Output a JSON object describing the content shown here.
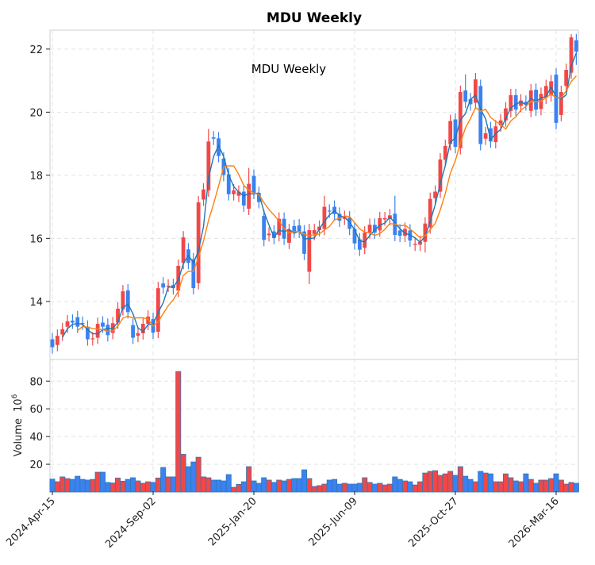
{
  "chart_data": {
    "type": "candlestick",
    "title": "MDU  Weekly",
    "annotation": "MDU  Weekly",
    "ylabel_volume": "Volume",
    "ylabel_volume_unit": "10",
    "ylabel_volume_exp": "6",
    "price_ylim": [
      12.16,
      22.6
    ],
    "volume_ylim": [
      0,
      95.6
    ],
    "price_ticks": [
      14,
      16,
      18,
      20,
      22
    ],
    "volume_ticks": [
      20,
      40,
      60,
      80
    ],
    "x_tick_labels": [
      "2024-Apr-15",
      "2024-Sep-02",
      "2025-Jan-20",
      "2025-Jun-09",
      "2025-Oct-27",
      "2026-Mar-16"
    ],
    "x_tick_index": [
      0,
      20,
      40,
      60,
      80,
      100
    ],
    "grid": true,
    "colors": {
      "up": "#f04848",
      "down": "#3b82f0",
      "ma_short": "#1f77b4",
      "ma_long": "#ff7f0e",
      "volume_edge": "#2f78b8"
    },
    "ma_periods": [
      3,
      6
    ],
    "open": [
      12.8,
      12.62,
      12.95,
      13.2,
      13.39,
      13.5,
      13.32,
      13.2,
      12.8,
      12.85,
      13.33,
      13.26,
      13.0,
      13.33,
      13.75,
      14.35,
      13.25,
      12.91,
      12.99,
      13.29,
      13.44,
      13.04,
      14.57,
      14.5,
      14.52,
      14.34,
      15.22,
      15.65,
      15.34,
      14.58,
      17.23,
      17.52,
      19.2,
      19.17,
      18.53,
      18.03,
      17.4,
      17.35,
      17.48,
      16.94,
      17.98,
      17.44,
      16.71,
      16.1,
      16.22,
      16.1,
      16.62,
      15.86,
      16.39,
      16.41,
      16.22,
      14.94,
      16.14,
      16.26,
      16.3,
      16.88,
      17.0,
      16.78,
      16.62,
      16.66,
      16.3,
      15.97,
      15.7,
      16.18,
      16.43,
      16.25,
      16.6,
      16.62,
      16.78,
      16.25,
      16.08,
      16.25,
      15.8,
      15.8,
      15.89,
      16.35,
      17.27,
      17.48,
      18.49,
      18.99,
      19.77,
      18.86,
      20.69,
      20.41,
      20.3,
      20.83,
      19.16,
      19.49,
      19.05,
      19.58,
      19.74,
      20.04,
      20.54,
      20.2,
      20.33,
      20.04,
      20.71,
      20.1,
      20.46,
      20.54,
      21.19,
      19.91,
      20.83,
      21.25,
      22.28
    ],
    "high": [
      13.0,
      13.11,
      13.32,
      13.57,
      13.59,
      13.7,
      13.52,
      13.4,
      13.03,
      13.49,
      13.53,
      13.46,
      13.51,
      13.97,
      14.52,
      14.55,
      13.45,
      13.19,
      13.49,
      13.72,
      13.64,
      14.62,
      14.77,
      14.7,
      14.72,
      15.33,
      16.23,
      15.85,
      15.54,
      17.34,
      17.75,
      19.47,
      19.4,
      19.37,
      18.73,
      18.23,
      17.72,
      17.68,
      17.68,
      18.23,
      18.18,
      17.64,
      16.91,
      16.35,
      16.42,
      16.82,
      16.82,
      16.46,
      16.59,
      16.61,
      16.42,
      16.46,
      16.46,
      16.57,
      17.35,
      17.08,
      17.2,
      16.98,
      16.88,
      16.86,
      16.5,
      16.17,
      16.38,
      16.63,
      16.63,
      16.84,
      16.84,
      16.93,
      17.35,
      16.45,
      16.5,
      16.45,
      16.02,
      16.09,
      16.67,
      17.45,
      17.68,
      18.7,
      19.13,
      19.92,
      19.97,
      20.84,
      21.2,
      20.61,
      21.24,
      21.03,
      19.53,
      19.69,
      19.75,
      19.94,
      20.32,
      20.74,
      20.74,
      20.57,
      20.53,
      20.89,
      20.91,
      20.78,
      21.03,
      21.18,
      21.39,
      20.84,
      21.54,
      22.47,
      22.48
    ],
    "low": [
      12.35,
      12.42,
      12.75,
      13.0,
      13.13,
      13.0,
      13.1,
      12.6,
      12.6,
      12.65,
      13.0,
      12.73,
      12.8,
      13.13,
      13.55,
      13.46,
      12.65,
      12.71,
      12.79,
      13.09,
      12.81,
      12.84,
      14.24,
      14.3,
      14.22,
      14.14,
      15.02,
      15.02,
      14.22,
      14.38,
      17.03,
      17.32,
      18.96,
      18.41,
      17.81,
      17.2,
      17.2,
      17.15,
      16.84,
      16.74,
      17.24,
      16.95,
      15.75,
      15.9,
      15.81,
      15.9,
      15.79,
      15.66,
      16.02,
      16.01,
      15.31,
      14.55,
      15.94,
      16.06,
      16.1,
      16.65,
      16.57,
      16.36,
      16.42,
      16.1,
      15.64,
      15.44,
      15.5,
      15.98,
      15.98,
      16.05,
      16.4,
      16.42,
      15.91,
      15.88,
      15.88,
      15.73,
      15.6,
      15.6,
      15.55,
      16.15,
      17.07,
      17.28,
      18.29,
      18.79,
      18.7,
      18.66,
      20.13,
      20.05,
      20.1,
      18.79,
      18.96,
      18.87,
      18.85,
      19.38,
      19.54,
      19.84,
      19.88,
      20.0,
      20.05,
      19.84,
      19.88,
      19.9,
      20.26,
      20.34,
      19.46,
      19.71,
      20.63,
      21.05,
      21.5
    ],
    "close": [
      12.55,
      12.91,
      13.12,
      13.37,
      13.33,
      13.2,
      13.3,
      12.8,
      12.83,
      13.29,
      13.2,
      12.93,
      13.31,
      13.77,
      14.32,
      13.66,
      12.85,
      12.99,
      13.29,
      13.52,
      13.01,
      14.42,
      14.44,
      14.5,
      14.42,
      15.13,
      16.03,
      15.22,
      14.42,
      17.14,
      17.55,
      19.07,
      19.16,
      18.61,
      18.01,
      17.4,
      17.52,
      17.48,
      17.04,
      17.73,
      17.44,
      17.15,
      15.95,
      16.15,
      16.01,
      16.62,
      15.99,
      16.26,
      16.22,
      16.21,
      15.51,
      16.26,
      16.26,
      16.37,
      17.0,
      16.85,
      16.77,
      16.56,
      16.68,
      16.3,
      15.84,
      15.64,
      16.18,
      16.43,
      16.18,
      16.64,
      16.64,
      16.73,
      16.11,
      16.08,
      16.3,
      15.93,
      15.82,
      15.89,
      16.47,
      17.25,
      17.48,
      18.5,
      18.93,
      19.72,
      18.9,
      20.64,
      20.33,
      20.25,
      21.04,
      18.99,
      19.33,
      19.07,
      19.55,
      19.74,
      20.12,
      20.54,
      20.08,
      20.37,
      20.25,
      20.69,
      20.08,
      20.58,
      20.83,
      20.98,
      19.66,
      20.64,
      21.34,
      22.37,
      21.92
    ],
    "volume": [
      9.3,
      7.4,
      10.9,
      9.7,
      9.1,
      11.4,
      9.1,
      8.6,
      9.1,
      14.3,
      14.3,
      6.9,
      6.5,
      10.1,
      7.8,
      9.1,
      10.3,
      8.0,
      6.3,
      7.4,
      6.9,
      10.1,
      17.7,
      10.9,
      10.9,
      86.9,
      27.2,
      18.3,
      21.7,
      25.1,
      10.9,
      10.3,
      8.6,
      8.6,
      8.0,
      12.6,
      3.4,
      5.5,
      7.4,
      18.3,
      8.0,
      6.3,
      10.3,
      8.6,
      6.9,
      8.6,
      8.0,
      9.1,
      9.7,
      9.7,
      16.0,
      9.7,
      4.0,
      4.6,
      5.7,
      8.6,
      9.1,
      5.7,
      6.3,
      5.7,
      5.7,
      6.3,
      10.3,
      6.9,
      5.7,
      6.3,
      5.1,
      5.7,
      10.9,
      9.1,
      8.0,
      7.4,
      5.1,
      7.4,
      13.7,
      14.9,
      15.4,
      12.0,
      13.1,
      14.9,
      12.0,
      18.3,
      11.4,
      9.1,
      7.4,
      14.9,
      13.7,
      13.1,
      7.4,
      7.4,
      13.1,
      10.3,
      8.0,
      7.4,
      13.1,
      9.1,
      6.3,
      8.6,
      8.6,
      9.7,
      13.1,
      8.6,
      5.7,
      6.9,
      6.3
    ]
  }
}
